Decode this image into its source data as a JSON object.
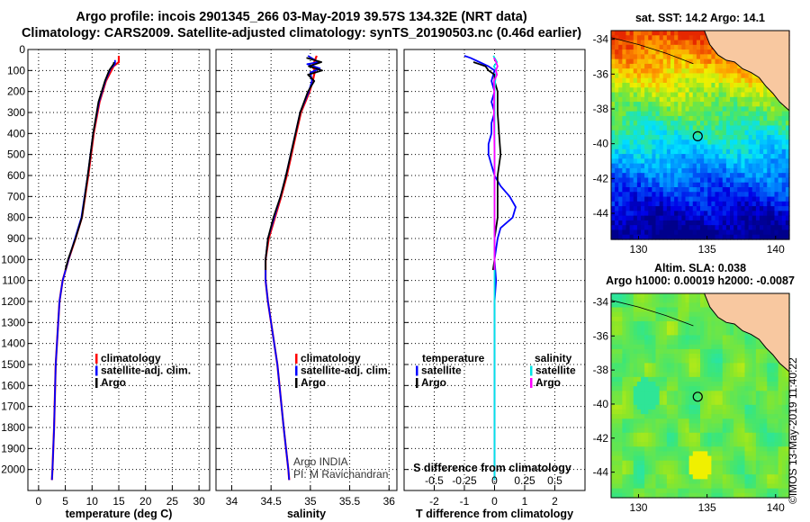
{
  "header": {
    "line1": "Argo profile: incois 2901345_266 03-May-2019 39.57S 134.32E (NRT data)",
    "line2": "Climatology: CARS2009. Satellite-adjusted climatology: synTS_20190503.nc (0.46d earlier)"
  },
  "chart_data": [
    {
      "type": "line",
      "id": "temperature",
      "xlabel": "temperature (deg C)",
      "xlim": [
        -2,
        32
      ],
      "xticks": [
        0,
        5,
        10,
        15,
        20,
        25,
        30
      ],
      "ylim": [
        2100,
        0
      ],
      "yticks": [
        0,
        100,
        200,
        300,
        400,
        500,
        600,
        700,
        800,
        900,
        1000,
        1100,
        1200,
        1300,
        1400,
        1500,
        1600,
        1700,
        1800,
        1900,
        2000
      ],
      "grid": true,
      "legend": [
        "climatology",
        "satellite-adj. clim.",
        "Argo"
      ],
      "legend_colors": [
        "#ff0000",
        "#0000ff",
        "#000000"
      ],
      "series": [
        {
          "name": "climatology",
          "color": "#ff0000",
          "depth": [
            30,
            60,
            80,
            150,
            250,
            400,
            600,
            800,
            900,
            1000,
            1100,
            1200,
            1500,
            1800,
            2000,
            2050
          ],
          "values": [
            15.0,
            15.0,
            14.0,
            12.6,
            11.4,
            10.3,
            9.3,
            8.1,
            6.9,
            5.6,
            4.5,
            3.9,
            3.2,
            2.9,
            2.6,
            2.5
          ]
        },
        {
          "name": "satellite-adj. clim.",
          "color": "#0000ff",
          "depth": [
            50,
            70,
            90,
            150,
            250,
            400,
            600,
            800,
            900,
            1000,
            1100,
            1200,
            1500,
            1800,
            2000,
            2050
          ],
          "values": [
            14.3,
            14.3,
            13.5,
            12.5,
            11.3,
            10.2,
            9.2,
            8.0,
            6.8,
            5.6,
            4.5,
            3.9,
            3.2,
            2.9,
            2.6,
            2.5
          ]
        },
        {
          "name": "Argo",
          "color": "#000000",
          "depth": [
            60,
            70,
            100,
            150,
            250,
            400,
            600,
            800,
            900,
            1000,
            1050
          ],
          "values": [
            14.1,
            14.0,
            13.2,
            12.4,
            11.2,
            10.2,
            9.2,
            8.1,
            6.9,
            5.5,
            5.0
          ]
        }
      ]
    },
    {
      "type": "line",
      "id": "salinity",
      "xlabel": "salinity",
      "xlim": [
        33.8,
        36.1
      ],
      "xticks": [
        34,
        34.5,
        35,
        35.5,
        36
      ],
      "ylim": [
        2100,
        0
      ],
      "grid": true,
      "legend": [
        "climatology",
        "satellite-adj. clim.",
        "Argo"
      ],
      "legend_colors": [
        "#ff0000",
        "#0000ff",
        "#000000"
      ],
      "notes": [
        "Argo INDIA",
        "PI: M Ravichandran"
      ],
      "series": [
        {
          "name": "climatology",
          "color": "#ff0000",
          "depth": [
            30,
            60,
            80,
            100,
            150,
            200,
            300,
            400,
            500,
            600,
            700,
            800,
            900,
            1000,
            1100,
            1200,
            1300,
            1500,
            1800,
            2000,
            2050
          ],
          "values": [
            35.08,
            35.05,
            35.02,
            35.06,
            35.03,
            34.99,
            34.88,
            34.82,
            34.76,
            34.7,
            34.63,
            34.55,
            34.47,
            34.43,
            34.43,
            34.46,
            34.5,
            34.58,
            34.66,
            34.72,
            34.73
          ]
        },
        {
          "name": "satellite-adj. clim.",
          "color": "#0000ff",
          "depth": [
            30,
            60,
            70,
            90,
            110,
            150,
            200,
            300,
            400,
            500,
            600,
            700,
            800,
            900,
            1000,
            1100,
            1200,
            1300,
            1500,
            1800,
            2000,
            2050
          ],
          "values": [
            34.97,
            35.1,
            34.96,
            35.12,
            35.0,
            35.02,
            34.98,
            34.87,
            34.81,
            34.75,
            34.69,
            34.62,
            34.54,
            34.46,
            34.43,
            34.43,
            34.46,
            34.5,
            34.58,
            34.66,
            34.72,
            34.73
          ]
        },
        {
          "name": "Argo",
          "color": "#000000",
          "depth": [
            40,
            60,
            80,
            100,
            120,
            150,
            200,
            300,
            400,
            500,
            600,
            700,
            800,
            900,
            1000,
            1050
          ],
          "values": [
            34.95,
            35.14,
            34.98,
            35.15,
            34.97,
            35.05,
            34.97,
            34.87,
            34.81,
            34.75,
            34.69,
            34.62,
            34.53,
            34.46,
            34.43,
            34.43
          ]
        }
      ]
    },
    {
      "type": "line",
      "id": "difference",
      "xlabel": "T difference from climatology",
      "xlabel2": "S difference from climatology",
      "xlim": [
        -3,
        3
      ],
      "xticks": [
        -2,
        -1,
        0,
        1,
        2
      ],
      "xticks2_positions": [
        -2,
        -1,
        0,
        1,
        2
      ],
      "xticks2_labels": [
        "-0.5",
        "-0.25",
        "0",
        "0.25",
        "0.5"
      ],
      "ylim": [
        2100,
        0
      ],
      "grid": true,
      "legend": [
        "temperature",
        "satellite",
        "Argo",
        "salinity",
        "satellite",
        "Argo"
      ],
      "legend_colors": [
        "",
        "#0000ff",
        "#000000",
        "",
        "#00e5e5",
        "#ff00ff"
      ],
      "series": [
        {
          "name": "temperature satellite",
          "color": "#0000ff",
          "depth": [
            30,
            40,
            60,
            80,
            100,
            150,
            200,
            250,
            300,
            350,
            400,
            450,
            500,
            550,
            600,
            650,
            700,
            750,
            800,
            850,
            900,
            1000,
            1100,
            1200,
            1500,
            1800,
            2000,
            2050
          ],
          "values": [
            -1.0,
            -0.8,
            -0.5,
            -0.2,
            0.0,
            -0.1,
            0.0,
            -0.1,
            0.0,
            -0.1,
            -0.1,
            -0.2,
            -0.2,
            -0.1,
            0.0,
            0.2,
            0.5,
            0.7,
            0.6,
            0.2,
            0.1,
            0.0,
            0.05,
            0.0,
            0.0,
            0.0,
            0.0,
            0.0
          ]
        },
        {
          "name": "temperature Argo",
          "color": "#000000",
          "depth": [
            60,
            70,
            80,
            100,
            120,
            150,
            200,
            300,
            400,
            500,
            600,
            700,
            800,
            900,
            1000,
            1050
          ],
          "values": [
            -0.7,
            -0.5,
            -0.3,
            -0.2,
            0.0,
            0.0,
            0.1,
            0.1,
            0.15,
            0.2,
            0.1,
            0.1,
            0.1,
            0.0,
            0.0,
            -0.05
          ]
        },
        {
          "name": "salinity satellite",
          "color": "#00e5e5",
          "depth": [
            30,
            60,
            80,
            100,
            150,
            200,
            300,
            400,
            600,
            800,
            1000,
            1200,
            1500,
            1800,
            2000,
            2050
          ],
          "values": [
            -0.04,
            0.08,
            -0.02,
            0.06,
            0.02,
            0.0,
            0.0,
            0.0,
            0.0,
            0.0,
            0.0,
            0.0,
            0.0,
            0.0,
            0.0,
            0.0
          ]
        },
        {
          "name": "salinity Argo",
          "color": "#ff00ff",
          "depth": [
            40,
            60,
            80,
            100,
            120,
            150,
            200,
            300,
            400,
            500,
            600,
            800,
            1000,
            1050
          ],
          "values": [
            -0.02,
            0.05,
            0.1,
            0.04,
            0.08,
            -0.02,
            -0.01,
            -0.02,
            -0.01,
            0.0,
            0.0,
            0.0,
            0.0,
            0.0
          ]
        }
      ]
    },
    {
      "type": "heatmap",
      "id": "sst-map",
      "title": "sat. SST: 14.2 Argo: 14.1",
      "xlim": [
        128,
        141
      ],
      "ylim": [
        -45.5,
        -33.5
      ],
      "xticks": [
        130,
        135,
        140
      ],
      "yticks": [
        -34,
        -36,
        -38,
        -40,
        -42,
        -44
      ],
      "marker": {
        "lon": 134.32,
        "lat": -39.57
      }
    },
    {
      "type": "heatmap",
      "id": "sla-map",
      "title": "Altim. SLA: 0.038",
      "subtitle": "Argo h1000: 0.00019 h2000: -0.0087",
      "xlim": [
        128,
        141
      ],
      "ylim": [
        -45.5,
        -33.5
      ],
      "xticks": [
        130,
        135,
        140
      ],
      "yticks": [
        -34,
        -36,
        -38,
        -40,
        -42,
        -44
      ],
      "marker": {
        "lon": 134.32,
        "lat": -39.57
      }
    }
  ],
  "footer": {
    "stamp": "©IMOS 13-May-2019 11:40:22"
  }
}
